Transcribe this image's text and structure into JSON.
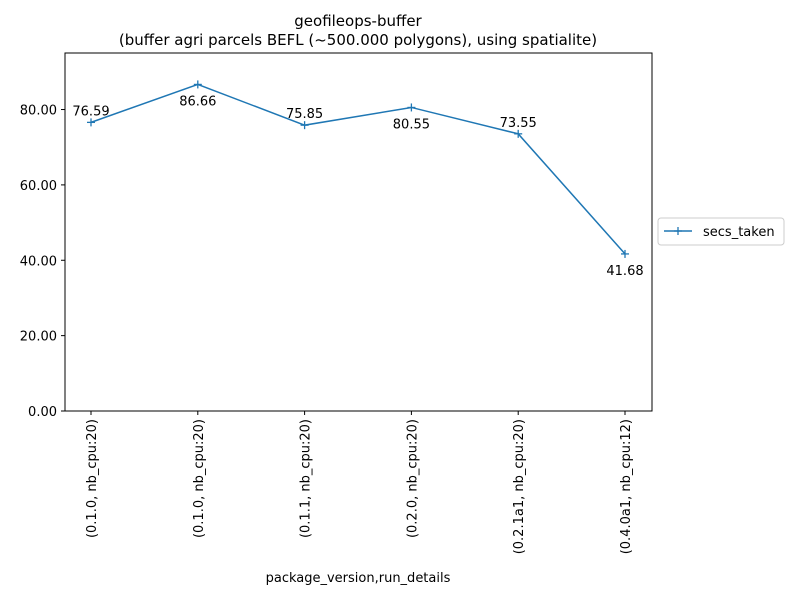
{
  "chart_data": {
    "type": "line",
    "title": "geofileops-buffer",
    "subtitle": "(buffer agri parcels BEFL (~500.000 polygons), using spatialite)",
    "xlabel": "package_version,run_details",
    "ylabel": "",
    "categories": [
      "(0.1.0, nb_cpu:20)",
      "(0.1.0, nb_cpu:20)",
      "(0.1.1, nb_cpu:20)",
      "(0.2.0, nb_cpu:20)",
      "(0.2.1a1, nb_cpu:20)",
      "(0.4.0a1, nb_cpu:12)"
    ],
    "series": [
      {
        "name": "secs_taken",
        "values": [
          76.59,
          86.66,
          75.85,
          80.55,
          73.55,
          41.68
        ],
        "data_labels": [
          "76.59",
          "86.66",
          "75.85",
          "80.55",
          "73.55",
          "41.68"
        ],
        "label_positions": [
          "above",
          "below",
          "above",
          "below",
          "above",
          "below"
        ],
        "color": "#1f77b4",
        "marker": "plus"
      }
    ],
    "ylim": [
      0,
      95
    ],
    "yticks": [
      0,
      20,
      40,
      60,
      80
    ],
    "ytick_labels": [
      "0.00",
      "20.00",
      "40.00",
      "60.00",
      "80.00"
    ],
    "grid": false,
    "legend_position": "right"
  }
}
